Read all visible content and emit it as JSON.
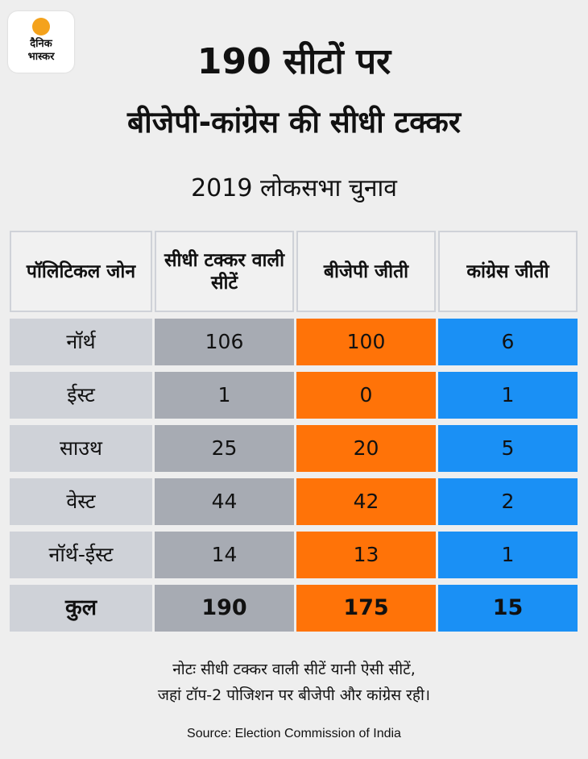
{
  "logo": {
    "line1": "दैनिक",
    "line2": "भास्कर"
  },
  "title_line1": "190 सीटों पर",
  "title_line2": "बीजेपी-कांग्रेस की सीधी टक्कर",
  "subtitle": "2019 लोकसभा चुनाव",
  "table": {
    "headers": [
      "पॉलिटिकल जोन",
      "सीधी टक्कर वाली सीटें",
      "बीजेपी जीती",
      "कांग्रेस जीती"
    ],
    "rows": [
      [
        "नॉर्थ",
        "106",
        "100",
        "6"
      ],
      [
        "ईस्ट",
        "1",
        "0",
        "1"
      ],
      [
        "साउथ",
        "25",
        "20",
        "5"
      ],
      [
        "वेस्ट",
        "44",
        "42",
        "2"
      ],
      [
        "नॉर्थ-ईस्ट",
        "14",
        "13",
        "1"
      ],
      [
        "कुल",
        "190",
        "175",
        "15"
      ]
    ]
  },
  "note_line1": "नोटः सीधी टक्कर वाली सीटें यानी ऐसी सीटें,",
  "note_line2": "जहां टॉप-2 पोजिशन पर बीजेपी और कांग्रेस रही।",
  "source": "Source: Election Commission of India",
  "colors": {
    "bjp": "#ff7308",
    "congress": "#1a90f5",
    "direct": "#a7abb3",
    "zone": "#cfd2d8",
    "background": "#eeeeee"
  }
}
